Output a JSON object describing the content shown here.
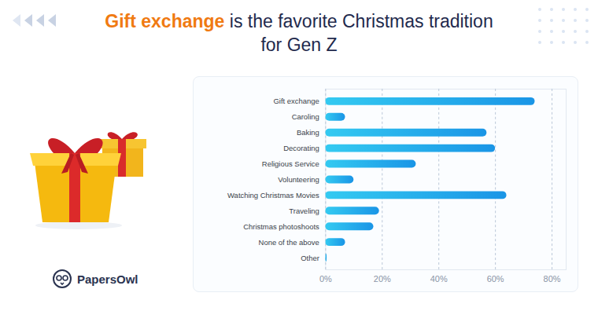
{
  "chart_data": {
    "type": "bar",
    "orientation": "horizontal",
    "title": "Gift exchange is the favorite Christmas tradition for Gen Z",
    "title_highlight": "Gift exchange",
    "annotations": [
      "PapersOwl"
    ],
    "categories": [
      "Gift exchange",
      "Caroling",
      "Baking",
      "Decorating",
      "Religious Service",
      "Volunteering",
      "Watching Christmas Movies",
      "Traveling",
      "Christmas photoshoots",
      "None of the above",
      "Other"
    ],
    "values": [
      74,
      7,
      57,
      60,
      32,
      10,
      64,
      19,
      17,
      7,
      0.5
    ],
    "color": "#1a95e6",
    "xlim": [
      0,
      85
    ],
    "xticks": [
      {
        "value": 0,
        "label": "0%"
      },
      {
        "value": 20,
        "label": "20%"
      },
      {
        "value": 40,
        "label": "40%"
      },
      {
        "value": 60,
        "label": "60%"
      },
      {
        "value": 80,
        "label": "80%"
      }
    ],
    "grid": true
  }
}
